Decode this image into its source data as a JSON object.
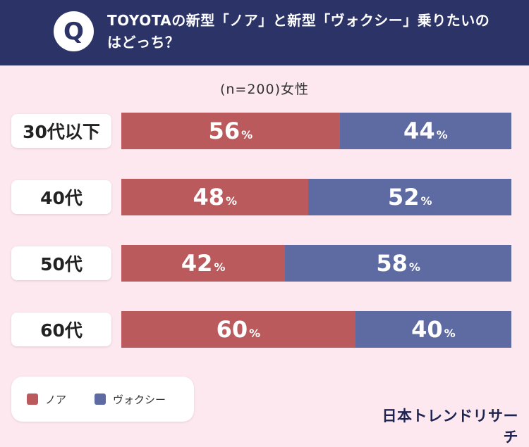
{
  "header": {
    "badge": "Q",
    "title": "TOYOTAの新型「ノア」と新型「ヴォクシー」乗りたいのはどっち？"
  },
  "subtitle": "(n=200)女性",
  "colors": {
    "noah": "#bb5a5c",
    "voxy": "#5e6ba3",
    "header": "#2c3366",
    "background": "#fce8ee"
  },
  "legend": [
    {
      "label": "ノア",
      "color": "#bb5a5c"
    },
    {
      "label": "ヴォクシー",
      "color": "#5e6ba3"
    }
  ],
  "brand": "日本トレンドリサーチ",
  "chart_data": {
    "type": "bar",
    "orientation": "horizontal",
    "stacked": true,
    "unit": "%",
    "categories": [
      "30代以下",
      "40代",
      "50代",
      "60代"
    ],
    "series": [
      {
        "name": "ノア",
        "values": [
          56,
          48,
          42,
          60
        ]
      },
      {
        "name": "ヴォクシー",
        "values": [
          44,
          52,
          58,
          40
        ]
      }
    ],
    "xlim": [
      0,
      100
    ],
    "grid": false,
    "legend_position": "bottom-left"
  }
}
